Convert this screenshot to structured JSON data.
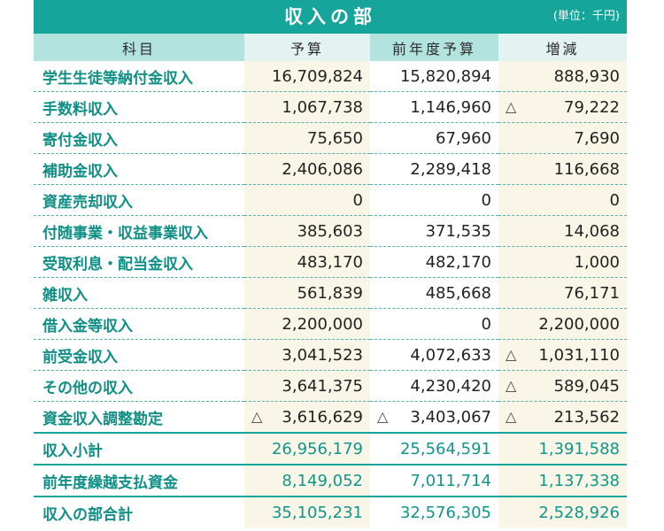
{
  "header": {
    "title": "収入の部",
    "unit": "(単位：千円)"
  },
  "columns": [
    "科目",
    "予算",
    "前年度予算",
    "増減"
  ],
  "rows": [
    {
      "label": "学生生徒等納付金収入",
      "budget": "16,709,824",
      "prev": "15,820,894",
      "diff": "888,930",
      "diff_neg": ""
    },
    {
      "label": "手数料収入",
      "budget": "1,067,738",
      "prev": "1,146,960",
      "diff": "79,222",
      "diff_neg": "△"
    },
    {
      "label": "寄付金収入",
      "budget": "75,650",
      "prev": "67,960",
      "diff": "7,690",
      "diff_neg": ""
    },
    {
      "label": "補助金収入",
      "budget": "2,406,086",
      "prev": "2,289,418",
      "diff": "116,668",
      "diff_neg": ""
    },
    {
      "label": "資産売却収入",
      "budget": "0",
      "prev": "0",
      "diff": "0",
      "diff_neg": ""
    },
    {
      "label": "付随事業・収益事業収入",
      "budget": "385,603",
      "prev": "371,535",
      "diff": "14,068",
      "diff_neg": ""
    },
    {
      "label": "受取利息・配当金収入",
      "budget": "483,170",
      "prev": "482,170",
      "diff": "1,000",
      "diff_neg": ""
    },
    {
      "label": "雑収入",
      "budget": "561,839",
      "prev": "485,668",
      "diff": "76,171",
      "diff_neg": ""
    },
    {
      "label": "借入金等収入",
      "budget": "2,200,000",
      "prev": "0",
      "diff": "2,200,000",
      "diff_neg": ""
    },
    {
      "label": "前受金収入",
      "budget": "3,041,523",
      "prev": "4,072,633",
      "diff": "1,031,110",
      "diff_neg": "△"
    },
    {
      "label": "その他の収入",
      "budget": "3,641,375",
      "prev": "4,230,420",
      "diff": "589,045",
      "diff_neg": "△"
    },
    {
      "label": "資金収入調整勘定",
      "budget": "3,616,629",
      "budget_neg": "△",
      "prev": "3,403,067",
      "prev_neg": "△",
      "diff": "213,562",
      "diff_neg": "△"
    }
  ],
  "subtotal": {
    "label": "収入小計",
    "budget": "26,956,179",
    "prev": "25,564,591",
    "diff": "1,391,588"
  },
  "carryover": {
    "label": "前年度繰越支払資金",
    "budget": "8,149,052",
    "prev": "7,011,714",
    "diff": "1,137,338"
  },
  "total": {
    "label": "収入の部合計",
    "budget": "35,105,231",
    "prev": "32,576,305",
    "diff": "2,528,926"
  }
}
